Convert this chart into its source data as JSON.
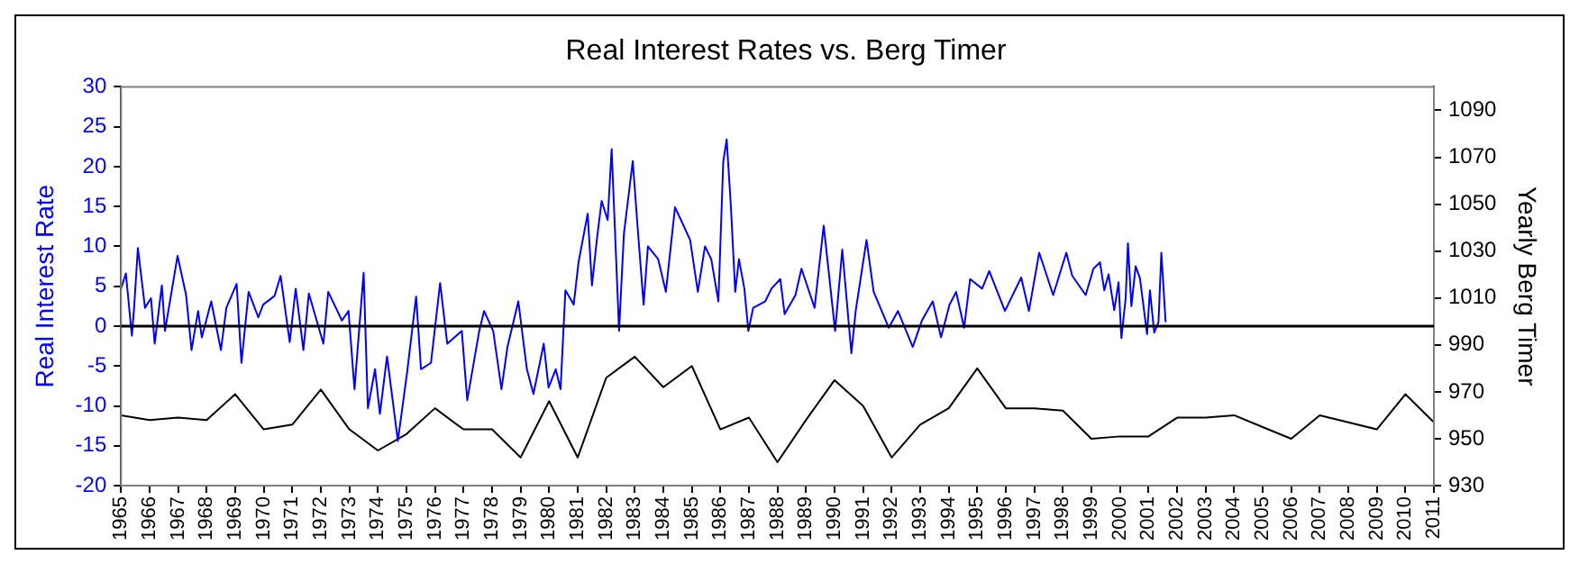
{
  "chart_data": {
    "type": "line",
    "title": "Real Interest Rates vs. Berg Timer",
    "ylabel": "Real Interest Rate",
    "y2label": "Yearly Berg Timer",
    "xlim": [
      1965,
      2011
    ],
    "xticks": [
      1965,
      1966,
      1967,
      1968,
      1969,
      1970,
      1971,
      1972,
      1973,
      1974,
      1975,
      1976,
      1977,
      1978,
      1979,
      1980,
      1981,
      1982,
      1983,
      1984,
      1985,
      1986,
      1987,
      1988,
      1989,
      1990,
      1991,
      1992,
      1993,
      1994,
      1995,
      1996,
      1997,
      1998,
      1999,
      2000,
      2001,
      2002,
      2003,
      2004,
      2005,
      2006,
      2007,
      2008,
      2009,
      2010,
      2011
    ],
    "ylim": [
      -20,
      30
    ],
    "yticks": [
      -20,
      -15,
      -10,
      -5,
      0,
      5,
      10,
      15,
      20,
      25,
      30
    ],
    "y2lim": [
      930,
      1100
    ],
    "y2ticks": [
      930,
      950,
      970,
      990,
      1010,
      1030,
      1050,
      1070,
      1090
    ],
    "grid": false,
    "legend": false,
    "ref_lines": [
      {
        "axis": "y",
        "value": 0,
        "color": "#000000"
      }
    ],
    "series": [
      {
        "color": "#0000ff",
        "axis": "y",
        "x": [
          1965.0,
          1965.17,
          1965.38,
          1965.46,
          1965.59,
          1965.84,
          1966.05,
          1966.18,
          1966.43,
          1966.54,
          1966.98,
          1967.28,
          1967.47,
          1967.7,
          1967.83,
          1968.16,
          1968.5,
          1968.69,
          1969.05,
          1969.22,
          1969.47,
          1969.81,
          1969.98,
          1970.38,
          1970.59,
          1970.91,
          1971.12,
          1971.39,
          1971.58,
          1972.09,
          1972.26,
          1972.74,
          1972.97,
          1973.18,
          1973.5,
          1973.65,
          1973.9,
          1974.07,
          1974.32,
          1974.7,
          1975.02,
          1975.34,
          1975.51,
          1975.86,
          1976.18,
          1976.43,
          1976.94,
          1977.13,
          1977.55,
          1977.72,
          1978.04,
          1978.33,
          1978.54,
          1978.92,
          1979.22,
          1979.45,
          1979.81,
          1979.98,
          1980.23,
          1980.4,
          1980.57,
          1980.86,
          1981.03,
          1981.35,
          1981.5,
          1981.67,
          1981.84,
          1982.05,
          1982.19,
          1982.45,
          1982.62,
          1982.93,
          1983.1,
          1983.31,
          1983.46,
          1983.82,
          1984.09,
          1984.41,
          1984.62,
          1984.94,
          1985.21,
          1985.46,
          1985.68,
          1985.93,
          1986.1,
          1986.22,
          1986.37,
          1986.52,
          1986.65,
          1986.84,
          1986.98,
          1987.15,
          1987.57,
          1987.79,
          1988.1,
          1988.25,
          1988.63,
          1988.84,
          1989.3,
          1989.62,
          1990.02,
          1990.27,
          1990.59,
          1990.74,
          1991.12,
          1991.37,
          1991.9,
          1992.22,
          1992.74,
          1993.06,
          1993.44,
          1993.73,
          1994.03,
          1994.26,
          1994.54,
          1994.75,
          1995.17,
          1995.42,
          1995.97,
          1996.54,
          1996.81,
          1997.17,
          1997.66,
          1998.12,
          1998.33,
          1998.8,
          1999.07,
          1999.3,
          1999.45,
          1999.6,
          1999.8,
          1999.95,
          2000.05,
          2000.2,
          2000.28,
          2000.4,
          2000.55,
          2000.7,
          2000.95,
          2001.05,
          2001.2,
          2001.35,
          2001.45,
          2001.6
        ],
        "values": [
          4.7,
          6.6,
          -1.2,
          2.4,
          9.8,
          2.3,
          3.5,
          -2.2,
          5.1,
          -0.6,
          8.8,
          3.9,
          -3.0,
          1.9,
          -1.4,
          3.1,
          -3.0,
          2.3,
          5.3,
          -4.6,
          4.3,
          1.1,
          2.7,
          3.8,
          6.3,
          -2.0,
          4.7,
          -3.0,
          4.1,
          -2.2,
          4.3,
          0.7,
          1.9,
          -7.9,
          6.7,
          -10.3,
          -5.4,
          -11.0,
          -3.8,
          -14.4,
          -5.9,
          3.7,
          -5.4,
          -4.6,
          5.4,
          -2.2,
          -0.6,
          -9.3,
          -0.6,
          1.9,
          -0.6,
          -7.9,
          -2.6,
          3.1,
          -5.4,
          -8.5,
          -2.2,
          -7.7,
          -5.4,
          -7.9,
          4.5,
          2.7,
          8.0,
          14.1,
          5.1,
          10.8,
          15.7,
          13.3,
          22.2,
          -0.6,
          11.6,
          20.7,
          12.4,
          2.7,
          10.0,
          8.4,
          4.3,
          14.9,
          13.3,
          10.8,
          4.3,
          10.0,
          8.4,
          3.1,
          20.6,
          23.4,
          14.9,
          4.3,
          8.4,
          4.7,
          -0.6,
          2.3,
          3.1,
          4.7,
          5.9,
          1.5,
          3.9,
          7.2,
          2.3,
          12.6,
          -0.6,
          9.6,
          -3.4,
          1.9,
          10.8,
          4.3,
          -0.2,
          1.9,
          -2.6,
          0.7,
          3.1,
          -1.4,
          2.7,
          4.3,
          -0.2,
          5.9,
          4.7,
          6.9,
          1.9,
          6.1,
          1.9,
          9.2,
          3.9,
          9.2,
          6.3,
          3.9,
          7.2,
          8.0,
          4.5,
          6.5,
          2.0,
          5.5,
          -1.5,
          3.5,
          10.4,
          2.5,
          7.5,
          6.0,
          -1.0,
          4.5,
          -0.8,
          0.5,
          9.2,
          0.5
        ]
      },
      {
        "color": "#000000",
        "axis": "y2",
        "x": [
          1965,
          1966,
          1967,
          1968,
          1969,
          1970,
          1971,
          1972,
          1973,
          1974,
          1975,
          1976,
          1977,
          1978,
          1979,
          1980,
          1981,
          1982,
          1983,
          1984,
          1985,
          1986,
          1987,
          1988,
          1989,
          1990,
          1991,
          1992,
          1993,
          1994,
          1995,
          1996,
          1997,
          1998,
          1999,
          2000,
          2001,
          2002,
          2003,
          2004,
          2005,
          2006,
          2007,
          2008,
          2009,
          2010,
          2011
        ],
        "values": [
          960,
          958,
          959,
          958,
          969,
          954,
          956,
          971,
          954,
          945,
          952,
          963,
          954,
          954,
          942,
          966,
          942,
          976,
          985,
          972,
          981,
          954,
          959,
          940,
          958,
          975,
          964,
          942,
          956,
          963,
          980,
          963,
          963,
          962,
          950,
          951,
          951,
          959,
          959,
          960,
          955,
          950,
          960,
          957,
          954,
          969,
          957
        ]
      }
    ]
  }
}
